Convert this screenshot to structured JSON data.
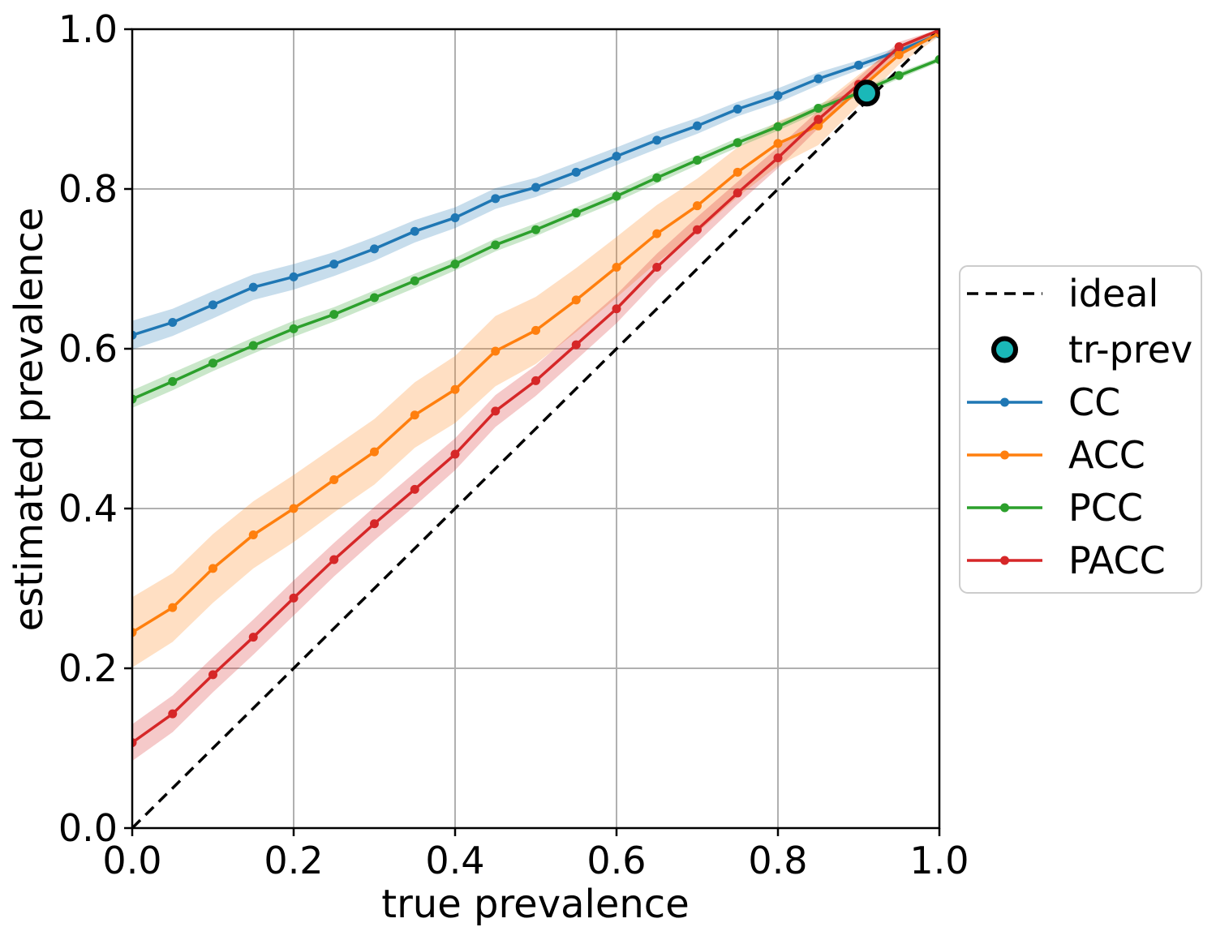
{
  "figure": {
    "background": "#ffffff",
    "grid_color": "#b0b0b0",
    "spine_color": "#000000",
    "legend_border_color": "#cccccc"
  },
  "chart_data": {
    "type": "line",
    "title": "",
    "xlabel": "true prevalence",
    "ylabel": "estimated prevalence",
    "xlim": [
      0.0,
      1.0
    ],
    "ylim": [
      0.0,
      1.0
    ],
    "grid": true,
    "legend_position": "center right outside",
    "xticks": [
      0.0,
      0.2,
      0.4,
      0.6,
      0.8,
      1.0
    ],
    "yticks": [
      0.0,
      0.2,
      0.4,
      0.6,
      0.8,
      1.0
    ],
    "xtick_labels": [
      "0.0",
      "0.2",
      "0.4",
      "0.6",
      "0.8",
      "1.0"
    ],
    "ytick_labels": [
      "0.0",
      "0.2",
      "0.4",
      "0.6",
      "0.8",
      "1.0"
    ],
    "x": [
      0.0,
      0.05,
      0.1,
      0.15,
      0.2,
      0.25,
      0.3,
      0.35,
      0.4,
      0.45,
      0.5,
      0.55,
      0.6,
      0.65,
      0.7,
      0.75,
      0.8,
      0.85,
      0.9,
      0.95,
      1.0
    ],
    "band_alpha": 0.25,
    "series": [
      {
        "name": "CC",
        "color": "#1f77b4",
        "values": [
          0.617,
          0.633,
          0.655,
          0.677,
          0.69,
          0.706,
          0.725,
          0.747,
          0.764,
          0.788,
          0.802,
          0.821,
          0.841,
          0.861,
          0.879,
          0.9,
          0.917,
          0.938,
          0.955,
          0.973,
          0.994
        ],
        "band_halfwidth": [
          0.018,
          0.017,
          0.017,
          0.016,
          0.016,
          0.015,
          0.015,
          0.014,
          0.013,
          0.013,
          0.012,
          0.012,
          0.011,
          0.011,
          0.01,
          0.009,
          0.009,
          0.008,
          0.006,
          0.005,
          0.003
        ]
      },
      {
        "name": "ACC",
        "color": "#ff7f0e",
        "values": [
          0.245,
          0.276,
          0.325,
          0.367,
          0.4,
          0.436,
          0.471,
          0.517,
          0.549,
          0.597,
          0.623,
          0.661,
          0.702,
          0.744,
          0.779,
          0.821,
          0.857,
          0.879,
          0.924,
          0.968,
          0.995
        ],
        "band_halfwidth": [
          0.044,
          0.043,
          0.043,
          0.042,
          0.042,
          0.041,
          0.041,
          0.041,
          0.042,
          0.044,
          0.042,
          0.04,
          0.038,
          0.036,
          0.034,
          0.031,
          0.028,
          0.024,
          0.019,
          0.012,
          0.004
        ]
      },
      {
        "name": "PCC",
        "color": "#2ca02c",
        "values": [
          0.537,
          0.559,
          0.582,
          0.604,
          0.625,
          0.643,
          0.664,
          0.685,
          0.706,
          0.73,
          0.749,
          0.77,
          0.791,
          0.814,
          0.836,
          0.858,
          0.878,
          0.901,
          0.92,
          0.942,
          0.962
        ],
        "band_halfwidth": [
          0.011,
          0.011,
          0.01,
          0.01,
          0.01,
          0.009,
          0.009,
          0.009,
          0.008,
          0.008,
          0.008,
          0.007,
          0.007,
          0.007,
          0.006,
          0.006,
          0.005,
          0.005,
          0.004,
          0.004,
          0.003
        ]
      },
      {
        "name": "PACC",
        "color": "#d62728",
        "values": [
          0.107,
          0.143,
          0.192,
          0.239,
          0.288,
          0.336,
          0.381,
          0.424,
          0.468,
          0.522,
          0.56,
          0.605,
          0.65,
          0.702,
          0.749,
          0.795,
          0.839,
          0.887,
          0.931,
          0.978,
          0.999
        ],
        "band_halfwidth": [
          0.023,
          0.023,
          0.022,
          0.022,
          0.022,
          0.021,
          0.021,
          0.021,
          0.02,
          0.02,
          0.019,
          0.019,
          0.018,
          0.017,
          0.016,
          0.014,
          0.013,
          0.011,
          0.009,
          0.006,
          0.002
        ]
      }
    ],
    "ideal_line": {
      "label": "ideal",
      "color": "#000000",
      "style": "dashed",
      "from": [
        0.0,
        0.0
      ],
      "to": [
        1.0,
        1.0
      ]
    },
    "tr_prev_marker": {
      "label": "tr-prev",
      "x": 0.91,
      "y": 0.92,
      "fill": "#1ab8b8",
      "edge": "#000000"
    }
  },
  "legend": {
    "items": [
      {
        "label": "ideal",
        "type": "dashed-line",
        "color": "#000000"
      },
      {
        "label": "tr-prev",
        "type": "circle",
        "fill": "#1ab8b8",
        "edge": "#000000"
      },
      {
        "label": "CC",
        "type": "line-dot",
        "color": "#1f77b4"
      },
      {
        "label": "ACC",
        "type": "line-dot",
        "color": "#ff7f0e"
      },
      {
        "label": "PCC",
        "type": "line-dot",
        "color": "#2ca02c"
      },
      {
        "label": "PACC",
        "type": "line-dot",
        "color": "#d62728"
      }
    ]
  }
}
